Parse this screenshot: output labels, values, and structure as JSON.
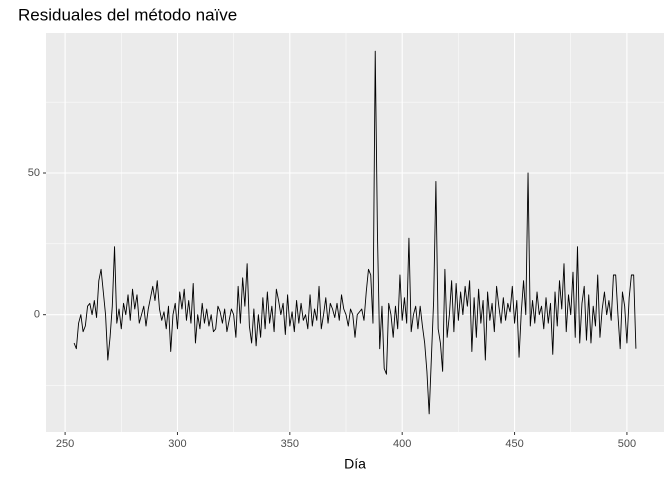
{
  "chart_data": {
    "type": "line",
    "title": "Residuales del método naïve",
    "x_label": "Día",
    "x": [
      254,
      255,
      256,
      257,
      258,
      259,
      260,
      261,
      262,
      263,
      264,
      265,
      266,
      267,
      268,
      269,
      270,
      271,
      272,
      273,
      274,
      275,
      276,
      277,
      278,
      279,
      280,
      281,
      282,
      283,
      284,
      285,
      286,
      287,
      288,
      289,
      290,
      291,
      292,
      293,
      294,
      295,
      296,
      297,
      298,
      299,
      300,
      301,
      302,
      303,
      304,
      305,
      306,
      307,
      308,
      309,
      310,
      311,
      312,
      313,
      314,
      315,
      316,
      317,
      318,
      319,
      320,
      321,
      322,
      323,
      324,
      325,
      326,
      327,
      328,
      329,
      330,
      331,
      332,
      333,
      334,
      335,
      336,
      337,
      338,
      339,
      340,
      341,
      342,
      343,
      344,
      345,
      346,
      347,
      348,
      349,
      350,
      351,
      352,
      353,
      354,
      355,
      356,
      357,
      358,
      359,
      360,
      361,
      362,
      363,
      364,
      365,
      366,
      367,
      368,
      369,
      370,
      371,
      372,
      373,
      374,
      375,
      376,
      377,
      378,
      379,
      380,
      381,
      382,
      383,
      384,
      385,
      386,
      387,
      388,
      389,
      390,
      391,
      392,
      393,
      394,
      395,
      396,
      397,
      398,
      399,
      400,
      401,
      402,
      403,
      404,
      405,
      406,
      407,
      408,
      409,
      410,
      411,
      412,
      413,
      414,
      415,
      416,
      417,
      418,
      419,
      420,
      421,
      422,
      423,
      424,
      425,
      426,
      427,
      428,
      429,
      430,
      431,
      432,
      433,
      434,
      435,
      436,
      437,
      438,
      439,
      440,
      441,
      442,
      443,
      444,
      445,
      446,
      447,
      448,
      449,
      450,
      451,
      452,
      453,
      454,
      455,
      456,
      457,
      458,
      459,
      460,
      461,
      462,
      463,
      464,
      465,
      466,
      467,
      468,
      469,
      470,
      471,
      472,
      473,
      474,
      475,
      476,
      477,
      478,
      479,
      480,
      481,
      482,
      483,
      484,
      485,
      486,
      487,
      488,
      489,
      490,
      491,
      492,
      493,
      494,
      495,
      496,
      497,
      498,
      499,
      500,
      501,
      502,
      503,
      504
    ],
    "values": [
      -10,
      -12,
      -3,
      0,
      -6,
      -4,
      3,
      4,
      0,
      5,
      -1,
      12,
      16,
      8,
      0,
      -16,
      -8,
      3,
      24,
      -3,
      2,
      -5,
      4,
      0,
      7,
      -2,
      9,
      2,
      7,
      -3,
      0,
      3,
      -4,
      2,
      6,
      10,
      5,
      12,
      2,
      -2,
      1,
      -5,
      3,
      -13,
      0,
      4,
      -5,
      8,
      2,
      9,
      -2,
      5,
      -3,
      11,
      -10,
      0,
      -5,
      4,
      -3,
      2,
      -4,
      0,
      -6,
      -5,
      3,
      1,
      -3,
      2,
      -6,
      -2,
      2,
      0,
      -8,
      10,
      -3,
      13,
      3,
      18,
      -4,
      -10,
      2,
      -11,
      0,
      -8,
      6,
      -5,
      8,
      -3,
      3,
      -6,
      9,
      5,
      0,
      4,
      -7,
      7,
      -4,
      1,
      -6,
      5,
      -3,
      4,
      -2,
      0,
      -5,
      7,
      -4,
      2,
      -2,
      10,
      -5,
      0,
      6,
      -3,
      4,
      2,
      -1,
      4,
      -2,
      7,
      2,
      0,
      -4,
      2,
      0,
      -8,
      0,
      1,
      2,
      -2,
      8,
      16,
      14,
      -3,
      93,
      28,
      -12,
      3,
      -19,
      -21,
      4,
      0,
      -8,
      3,
      -5,
      14,
      -2,
      6,
      -3,
      27,
      -6,
      0,
      3,
      -5,
      3,
      -4,
      -10,
      -20,
      -35,
      -15,
      5,
      47,
      -5,
      -10,
      -20,
      16,
      -8,
      0,
      12,
      -6,
      11,
      -2,
      8,
      0,
      10,
      3,
      12,
      -13,
      6,
      -8,
      9,
      -3,
      5,
      -16,
      8,
      -2,
      4,
      -6,
      10,
      3,
      -3,
      6,
      -2,
      4,
      1,
      10,
      -3,
      5,
      -15,
      1,
      12,
      0,
      50,
      -4,
      5,
      -3,
      8,
      0,
      3,
      -5,
      6,
      -3,
      4,
      -14,
      8,
      -4,
      12,
      2,
      18,
      -6,
      7,
      0,
      15,
      -8,
      24,
      -10,
      4,
      10,
      -9,
      7,
      -10,
      3,
      -4,
      14,
      -8,
      2,
      8,
      0,
      5,
      -2,
      14,
      14,
      0,
      -12,
      8,
      3,
      -10,
      6,
      14,
      14,
      -12
    ],
    "color": "#000000",
    "xlim": [
      241.5,
      516.5
    ],
    "xticks": [
      250,
      300,
      350,
      400,
      450,
      500
    ],
    "minor_xticks": [
      275,
      325,
      375,
      425,
      475
    ],
    "ylim": [
      -41.4,
      99.4
    ],
    "yticks": [
      0,
      50
    ],
    "minor_yticks": [
      -25,
      25,
      75
    ],
    "grid": true
  }
}
